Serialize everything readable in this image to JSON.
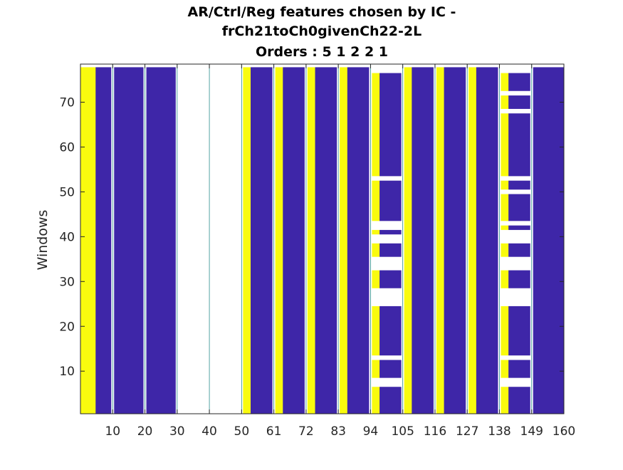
{
  "chart_data": {
    "type": "heatmap",
    "title_lines": [
      "AR/Ctrl/Reg features chosen by IC -",
      "frCh21toCh0givenCh22-2L",
      "Orders : 5 1 2 2 1"
    ],
    "xlabel": "",
    "ylabel": "Windows",
    "x_tick_labels": [
      "10",
      "20",
      "30",
      "40",
      "50",
      "61",
      "72",
      "83",
      "94",
      "105",
      "116",
      "127",
      "138",
      "149",
      "160"
    ],
    "y_tick_labels": [
      "10",
      "20",
      "30",
      "40",
      "50",
      "60",
      "70"
    ],
    "y_ticks": [
      10,
      20,
      30,
      40,
      50,
      60,
      70
    ],
    "y_range": [
      1,
      78
    ],
    "color_map": {
      "selected": "#F9FB0E",
      "not_selected": "#3E26A8",
      "empty": "#FFFFFF"
    },
    "white_gaps_x_ticks": [
      "10",
      "20",
      "30",
      "40",
      "50",
      "61",
      "72",
      "83",
      "94",
      "105",
      "116",
      "127",
      "138",
      "149"
    ],
    "columns": [
      {
        "from_tick": 0,
        "to_tick": 1,
        "yellow_fraction": 0.47,
        "white_rows": []
      },
      {
        "from_tick": 1,
        "to_tick": 2,
        "yellow_fraction": 0.0,
        "white_rows": []
      },
      {
        "from_tick": 2,
        "to_tick": 3,
        "yellow_fraction": 0.0,
        "white_rows": []
      },
      {
        "from_tick": 3,
        "to_tick": 4,
        "yellow_fraction": 0.0,
        "white_rows": "all"
      },
      {
        "from_tick": 4,
        "to_tick": 5,
        "yellow_fraction": 0.0,
        "white_rows": "all"
      },
      {
        "from_tick": 5,
        "to_tick": 6,
        "yellow_fraction": 0.28,
        "white_rows": []
      },
      {
        "from_tick": 6,
        "to_tick": 7,
        "yellow_fraction": 0.28,
        "white_rows": []
      },
      {
        "from_tick": 7,
        "to_tick": 8,
        "yellow_fraction": 0.28,
        "white_rows": []
      },
      {
        "from_tick": 8,
        "to_tick": 9,
        "yellow_fraction": 0.28,
        "white_rows": []
      },
      {
        "from_tick": 9,
        "to_tick": 10,
        "yellow_fraction": 0.28,
        "white_rows": [
          [
            7,
            8
          ],
          [
            13,
            13
          ],
          [
            25,
            28
          ],
          [
            33,
            35
          ],
          [
            39,
            40
          ],
          [
            42,
            43
          ],
          [
            53,
            53
          ],
          [
            77,
            78
          ]
        ]
      },
      {
        "from_tick": 10,
        "to_tick": 11,
        "yellow_fraction": 0.28,
        "white_rows": []
      },
      {
        "from_tick": 11,
        "to_tick": 12,
        "yellow_fraction": 0.28,
        "white_rows": []
      },
      {
        "from_tick": 12,
        "to_tick": 13,
        "yellow_fraction": 0.28,
        "white_rows": []
      },
      {
        "from_tick": 13,
        "to_tick": 14,
        "yellow_fraction": 0.28,
        "white_rows": [
          [
            7,
            8
          ],
          [
            13,
            13
          ],
          [
            25,
            28
          ],
          [
            33,
            35
          ],
          [
            39,
            41
          ],
          [
            43,
            43
          ],
          [
            50,
            50
          ],
          [
            53,
            53
          ],
          [
            68,
            68
          ],
          [
            72,
            72
          ],
          [
            77,
            78
          ]
        ]
      },
      {
        "from_tick": 14,
        "to_tick": 15,
        "yellow_fraction": 0.0,
        "white_rows": []
      }
    ]
  }
}
